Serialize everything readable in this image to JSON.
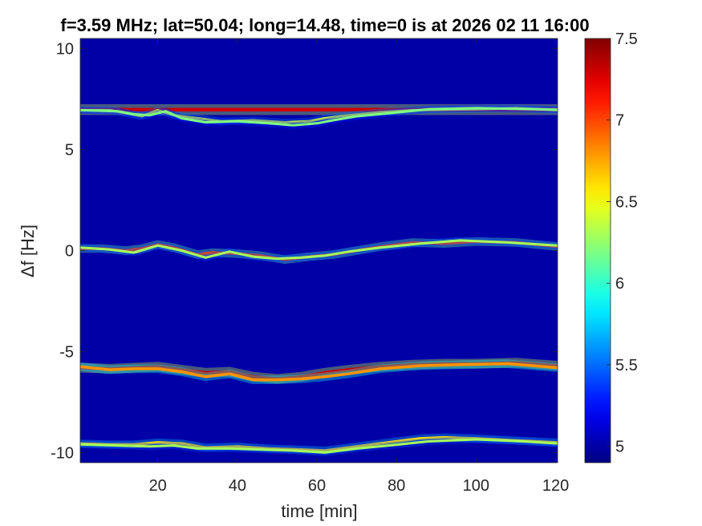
{
  "chart_data": {
    "type": "heatmap",
    "title": "f=3.59 MHz;  lat=50.04; long=14.48, time=0 is at 2026 02 11 16:00",
    "xlabel": "time [min]",
    "ylabel": "Δf [Hz]",
    "xlim": [
      0.5,
      120.5
    ],
    "ylim": [
      -10.5,
      10.5
    ],
    "xticks": [
      20,
      40,
      60,
      80,
      100,
      120
    ],
    "xtick_labels": [
      "20",
      "40",
      "60",
      "80",
      "100",
      "120"
    ],
    "yticks": [
      10,
      5,
      0,
      -5,
      -10
    ],
    "ytick_labels": [
      "10",
      "5",
      "0",
      "-5",
      "-10"
    ],
    "colorbar": {
      "colormap": "jet",
      "clim": [
        4.9,
        7.5
      ],
      "ticks": [
        7.5,
        7,
        6.5,
        6,
        5.5,
        5
      ],
      "tick_labels": [
        "7.5",
        "7",
        "6.5",
        "6",
        "5.5",
        "5"
      ]
    },
    "background_level": 5.0,
    "traces": [
      {
        "name_shown": false,
        "points": [
          [
            0.5,
            6.98
          ],
          [
            20,
            6.98
          ],
          [
            40,
            6.98
          ],
          [
            60,
            6.98
          ],
          [
            80,
            6.98
          ],
          [
            100,
            6.98
          ],
          [
            120.5,
            6.98
          ]
        ],
        "level": 7.3,
        "width": 0.18
      },
      {
        "points": [
          [
            0.5,
            6.95
          ],
          [
            8,
            6.95
          ],
          [
            12,
            6.8
          ],
          [
            16,
            6.65
          ],
          [
            20,
            6.95
          ],
          [
            24,
            6.7
          ],
          [
            30,
            6.55
          ],
          [
            36,
            6.4
          ],
          [
            44,
            6.45
          ],
          [
            52,
            6.35
          ],
          [
            58,
            6.4
          ],
          [
            62,
            6.55
          ],
          [
            68,
            6.7
          ],
          [
            76,
            6.85
          ],
          [
            84,
            6.95
          ],
          [
            100,
            7.0
          ],
          [
            110,
            7.05
          ],
          [
            120.5,
            6.95
          ]
        ],
        "level": 6.4,
        "width": 0.12
      },
      {
        "points": [
          [
            0.5,
            6.95
          ],
          [
            10,
            6.9
          ],
          [
            14,
            6.75
          ],
          [
            18,
            6.7
          ],
          [
            22,
            6.9
          ],
          [
            26,
            6.55
          ],
          [
            32,
            6.35
          ],
          [
            40,
            6.4
          ],
          [
            48,
            6.3
          ],
          [
            54,
            6.2
          ],
          [
            60,
            6.3
          ],
          [
            64,
            6.45
          ],
          [
            70,
            6.65
          ],
          [
            78,
            6.8
          ],
          [
            88,
            7.0
          ],
          [
            100,
            7.05
          ],
          [
            120.5,
            6.98
          ]
        ],
        "level": 6.2,
        "width": 0.12
      },
      {
        "points": [
          [
            0.5,
            0.1
          ],
          [
            6,
            0.1
          ],
          [
            12,
            0.0
          ],
          [
            16,
            0.1
          ],
          [
            20,
            0.3
          ],
          [
            24,
            0.15
          ],
          [
            30,
            -0.2
          ],
          [
            34,
            -0.1
          ],
          [
            40,
            -0.15
          ],
          [
            46,
            -0.25
          ],
          [
            52,
            -0.45
          ],
          [
            58,
            -0.3
          ],
          [
            64,
            -0.2
          ],
          [
            70,
            0.0
          ],
          [
            76,
            0.2
          ],
          [
            84,
            0.4
          ],
          [
            92,
            0.35
          ],
          [
            100,
            0.45
          ],
          [
            110,
            0.4
          ],
          [
            120.5,
            0.2
          ]
        ],
        "level": 7.0,
        "width": 0.14
      },
      {
        "points": [
          [
            0.5,
            0.15
          ],
          [
            8,
            0.05
          ],
          [
            14,
            -0.1
          ],
          [
            20,
            0.25
          ],
          [
            26,
            0.0
          ],
          [
            32,
            -0.35
          ],
          [
            38,
            -0.05
          ],
          [
            44,
            -0.3
          ],
          [
            50,
            -0.4
          ],
          [
            56,
            -0.35
          ],
          [
            62,
            -0.25
          ],
          [
            68,
            -0.05
          ],
          [
            76,
            0.15
          ],
          [
            86,
            0.35
          ],
          [
            96,
            0.5
          ],
          [
            108,
            0.4
          ],
          [
            120.5,
            0.25
          ]
        ],
        "level": 6.3,
        "width": 0.12
      },
      {
        "points": [
          [
            0.5,
            -5.8
          ],
          [
            8,
            -5.85
          ],
          [
            14,
            -5.8
          ],
          [
            20,
            -5.75
          ],
          [
            26,
            -5.9
          ],
          [
            32,
            -6.05
          ],
          [
            38,
            -6.0
          ],
          [
            44,
            -6.25
          ],
          [
            50,
            -6.35
          ],
          [
            56,
            -6.25
          ],
          [
            62,
            -6.05
          ],
          [
            68,
            -5.9
          ],
          [
            76,
            -5.75
          ],
          [
            84,
            -5.65
          ],
          [
            92,
            -5.6
          ],
          [
            100,
            -5.6
          ],
          [
            110,
            -5.55
          ],
          [
            120.5,
            -5.7
          ]
        ],
        "level": 7.3,
        "width": 0.16
      },
      {
        "points": [
          [
            0.5,
            -5.75
          ],
          [
            8,
            -5.9
          ],
          [
            14,
            -5.85
          ],
          [
            20,
            -5.85
          ],
          [
            26,
            -6.0
          ],
          [
            32,
            -6.25
          ],
          [
            38,
            -6.1
          ],
          [
            44,
            -6.4
          ],
          [
            50,
            -6.4
          ],
          [
            56,
            -6.35
          ],
          [
            62,
            -6.25
          ],
          [
            68,
            -6.1
          ],
          [
            76,
            -5.85
          ],
          [
            86,
            -5.7
          ],
          [
            96,
            -5.65
          ],
          [
            108,
            -5.6
          ],
          [
            120.5,
            -5.8
          ]
        ],
        "level": 6.8,
        "width": 0.14
      },
      {
        "points": [
          [
            0.5,
            -9.55
          ],
          [
            8,
            -9.6
          ],
          [
            14,
            -9.6
          ],
          [
            20,
            -9.5
          ],
          [
            26,
            -9.55
          ],
          [
            32,
            -9.75
          ],
          [
            40,
            -9.7
          ],
          [
            48,
            -9.8
          ],
          [
            56,
            -9.85
          ],
          [
            62,
            -9.9
          ],
          [
            70,
            -9.7
          ],
          [
            78,
            -9.5
          ],
          [
            86,
            -9.3
          ],
          [
            92,
            -9.25
          ],
          [
            100,
            -9.3
          ],
          [
            110,
            -9.4
          ],
          [
            120.5,
            -9.5
          ]
        ],
        "level": 6.6,
        "width": 0.13
      },
      {
        "points": [
          [
            0.5,
            -9.6
          ],
          [
            10,
            -9.65
          ],
          [
            18,
            -9.7
          ],
          [
            24,
            -9.65
          ],
          [
            30,
            -9.8
          ],
          [
            38,
            -9.8
          ],
          [
            46,
            -9.85
          ],
          [
            54,
            -9.9
          ],
          [
            62,
            -10.0
          ],
          [
            70,
            -9.8
          ],
          [
            78,
            -9.65
          ],
          [
            88,
            -9.45
          ],
          [
            100,
            -9.35
          ],
          [
            112,
            -9.45
          ],
          [
            120.5,
            -9.55
          ]
        ],
        "level": 6.3,
        "width": 0.12
      }
    ]
  }
}
